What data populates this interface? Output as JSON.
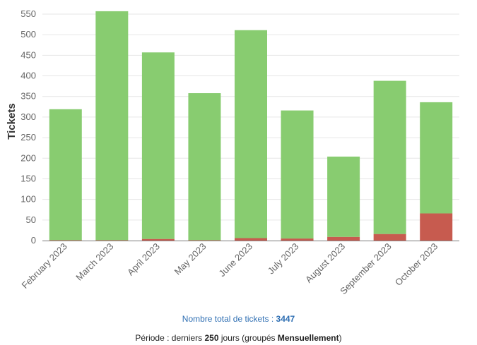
{
  "chart_data": {
    "type": "bar",
    "stacked": true,
    "ylabel": "Tickets",
    "ylim": [
      0,
      550
    ],
    "yticks": [
      0,
      50,
      100,
      150,
      200,
      250,
      300,
      350,
      400,
      450,
      500,
      550
    ],
    "grid": true,
    "categories": [
      "February 2023",
      "March 2023",
      "April 2023",
      "May 2023",
      "June 2023",
      "July 2023",
      "August 2023",
      "September 2023",
      "October 2023"
    ],
    "series": [
      {
        "values": [
          1,
          1,
          4,
          1,
          6,
          5,
          9,
          16,
          66
        ],
        "color": "#c75b4f"
      },
      {
        "values": [
          318,
          556,
          453,
          357,
          505,
          311,
          195,
          372,
          270
        ],
        "color": "#88cc70"
      }
    ]
  },
  "footer": {
    "total_label": "Nombre total de tickets : ",
    "total_value": "3447",
    "period_prefix": "Période : derniers ",
    "period_days": "250",
    "period_mid": " jours (groupés ",
    "period_group": "Mensuellement",
    "period_suffix": ")"
  }
}
